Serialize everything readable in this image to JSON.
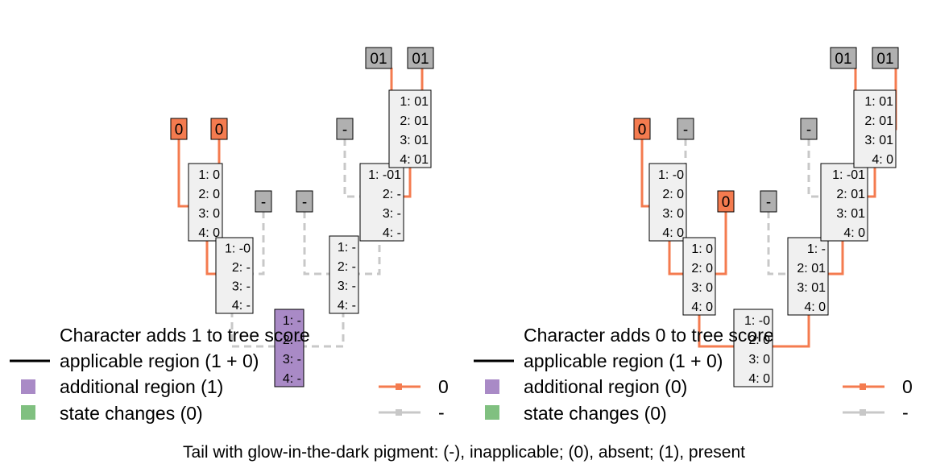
{
  "caption": "Tail with glow-in-the-dark pigment: (-), inapplicable; (0), absent; (1), present",
  "colors": {
    "orange": "#f47b4f",
    "grey": "#c8c8c8",
    "purple": "#a98ac6",
    "green": "#80c080",
    "box_fill": "#f0f0f0",
    "tip_grey": "#b0b0b0"
  },
  "panels": [
    {
      "id": "left",
      "legend": {
        "title": "Character adds 1 to tree score",
        "applicable": "applicable region (1 + 0)",
        "additional": "additional region (1)",
        "changes": "state changes (0)",
        "state0": "0",
        "stateDash": "-"
      },
      "tips": [
        "0",
        "0",
        "-",
        "-",
        "-",
        "01",
        "01"
      ],
      "nodes": [
        [
          "1: 0",
          "2: 0",
          "3: 0",
          "4: 0"
        ],
        [
          "1: -0",
          "2: -",
          "3: -",
          "4: -"
        ],
        [
          "1: -",
          "2: -",
          "3: -",
          "4: -"
        ],
        [
          "1: -01",
          "2: -",
          "3: -",
          "4: -"
        ],
        [
          "1: 01",
          "2: 01",
          "3: 01",
          "4: 01"
        ],
        [
          "1: -",
          "2: -",
          "3: -",
          "4: -"
        ]
      ]
    },
    {
      "id": "right",
      "legend": {
        "title": "Character adds 0 to tree score",
        "applicable": "applicable region (1 + 0)",
        "additional": "additional region (0)",
        "changes": "state changes (0)",
        "state0": "0",
        "stateDash": "-"
      },
      "tips": [
        "0",
        "-",
        "0",
        "-",
        "-",
        "01",
        "01"
      ],
      "nodes": [
        [
          "1: -0",
          "2: 0",
          "3: 0",
          "4: 0"
        ],
        [
          "1: 0",
          "2: 0",
          "3: 0",
          "4: 0"
        ],
        [
          "1: -",
          "2: 01",
          "3: 01",
          "4: 0"
        ],
        [
          "1: -01",
          "2: 01",
          "3: 01",
          "4: 0"
        ],
        [
          "1: 01",
          "2: 01",
          "3: 01",
          "4: 0"
        ],
        [
          "1: -0",
          "2: 0",
          "3: 0",
          "4: 0"
        ]
      ]
    }
  ]
}
